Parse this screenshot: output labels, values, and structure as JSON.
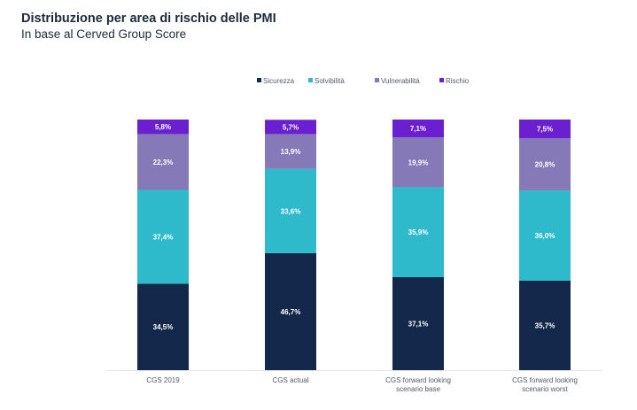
{
  "chart_data": {
    "type": "bar",
    "stacked": true,
    "normalized": true,
    "title": "Distribuzione per area di rischio delle PMI",
    "subtitle": "In base al Cerved Group Score",
    "xlabel": "",
    "ylabel": "",
    "ylim": [
      0,
      100
    ],
    "grid": false,
    "legend_position": "top-center",
    "categories": [
      "CGS 2019",
      "CGS actual",
      "CGS forward looking scenario base",
      "CGS forward looking scenario worst"
    ],
    "category_lines": [
      [
        "CGS 2019"
      ],
      [
        "CGS actual"
      ],
      [
        "CGS forward looking",
        "scenario base"
      ],
      [
        "CGS forward looking",
        "scenario worst"
      ]
    ],
    "series": [
      {
        "name": "Sicurezza",
        "color": "#14284b",
        "label_color": "#ffffff",
        "values": [
          34.5,
          46.7,
          37.1,
          35.7
        ],
        "labels": [
          "34,5%",
          "46,7%",
          "37,1%",
          "35,7%"
        ]
      },
      {
        "name": "Solvibilità",
        "color": "#2fbacc",
        "label_color": "#ffffff",
        "values": [
          37.4,
          33.6,
          35.9,
          36.0
        ],
        "labels": [
          "37,4%",
          "33,6%",
          "35,9%",
          "36,0%"
        ]
      },
      {
        "name": "Vulnerabilità",
        "color": "#8579b8",
        "label_color": "#ffffff",
        "values": [
          22.3,
          13.9,
          19.9,
          20.8
        ],
        "labels": [
          "22,3%",
          "13,9%",
          "19,9%",
          "20,8%"
        ]
      },
      {
        "name": "Rischio",
        "color": "#6a1fd1",
        "label_color": "#ffffff",
        "values": [
          5.8,
          5.7,
          7.1,
          7.5
        ],
        "labels": [
          "5,8%",
          "5,7%",
          "7,1%",
          "7,5%"
        ]
      }
    ]
  }
}
